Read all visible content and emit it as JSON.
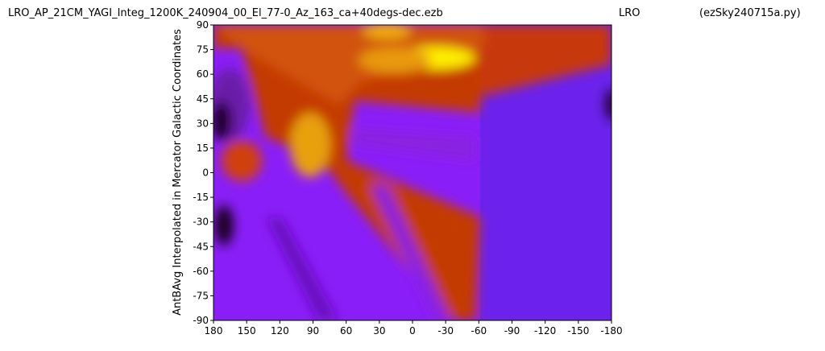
{
  "chart_data": {
    "type": "contour",
    "title": "LRO_AP_21CM_YAGI_Integ_1200K_240904_00_El_77-0_Az_163_ca+40degs-dec.ezb",
    "subtitle": "LRO",
    "annotation": "(ezSky240715a.py)",
    "y_label": "AntBAvg Interpolated in Mercator Galactic Coordinates",
    "xlim": [
      180,
      -180
    ],
    "ylim": [
      -90,
      90
    ],
    "xticks": [
      180,
      150,
      120,
      90,
      60,
      30,
      0,
      -30,
      -60,
      -90,
      -120,
      -150,
      -180
    ],
    "yticks": [
      90,
      75,
      60,
      45,
      30,
      15,
      0,
      -15,
      -30,
      -45,
      -60,
      -75,
      -90
    ]
  }
}
